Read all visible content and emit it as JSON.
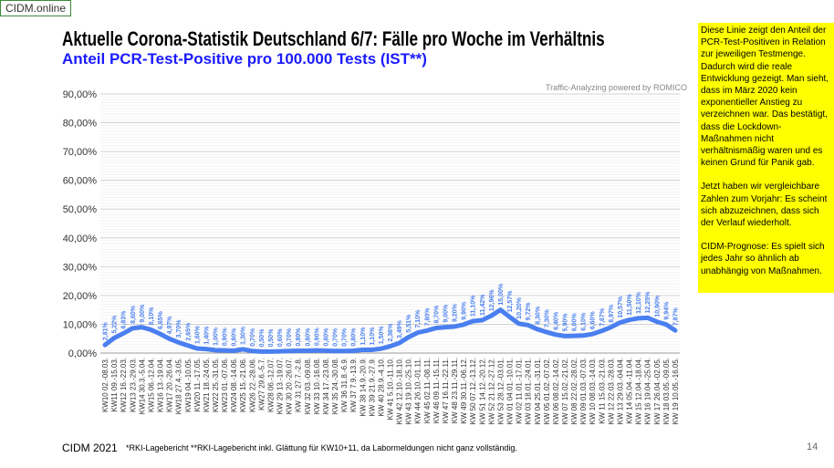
{
  "brand": "CIDM.online",
  "title": "Aktuelle Corona-Statistik Deutschland 6/7: Fälle pro Woche im Verhältnis",
  "subtitle": "Anteil PCR-Test-Positive pro 100.000 Tests (IST**)",
  "credit": "Traffic-Analyzing powered by ROMICO",
  "note": [
    "Diese Linie zeigt den Anteil der PCR-Test-Positiven in Relation zur jeweiligen Testmenge. Dadurch wird die reale Entwicklung gezeigt. Man sieht, dass im März 2020 kein exponentieller Anstieg zu verzeichnen war. Das bestätigt, dass die Lockdown-Maßnahmen nicht verhältnismäßig waren und es keinen Grund für Panik gab.",
    "Jetzt haben wir vergleichbare Zahlen zum Vorjahr: Es scheint sich abzuzeichnen, dass sich der Verlauf wiederholt.",
    "CIDM-Prognose: Es spielt sich jedes Jahr so ähnlich ab unabhängig von Maßnahmen."
  ],
  "footer": {
    "left": "CIDM 2021",
    "footnote": "*RKI-Lagebericht   **RKI-Lagebericht inkl. Glättung für KW10+11, da Labormeldungen nicht ganz vollständig.",
    "page": "14"
  },
  "chart_data": {
    "type": "line",
    "title": "",
    "xlabel": "",
    "ylabel": "",
    "ylim": [
      0,
      90
    ],
    "yticks": [
      "0,00%",
      "10,00%",
      "20,00%",
      "30,00%",
      "40,00%",
      "50,00%",
      "60,00%",
      "70,00%",
      "80,00%",
      "90,00%"
    ],
    "grid": true,
    "color": "#4a7ff0",
    "categories": [
      "KW10 02.-08.03.",
      "KW11 09.-15.03.",
      "KW12 16.-22.03.",
      "KW13 23.-29.03.",
      "KW14 30.3.-5.04.",
      "KW15 06.-12.04.",
      "KW16 13.-19.04.",
      "KW17 20.-26.04.",
      "KW18 27.4.-3.05.",
      "KW19 04.-10.05.",
      "KW20 11.-17.05.",
      "KW21 18.-24.05.",
      "KW22 25.-31.05.",
      "KW23 01.-07.06.",
      "KW24 08.-14.06.",
      "KW25 15.-21.06.",
      "KW26 22.-28.06.",
      "KW27 29.6.-5.7.",
      "KW28 06.-12.07.",
      "KW 29 13.-19.07.",
      "KW 30 20.-26.07.",
      "KW 31 27.7.-2.8.",
      "KW 32 03.-09.08.",
      "KW 33 10.-16.08.",
      "KW 34 17.-23.08.",
      "KW 35 24.-30.08.",
      "KW 36 31.8.-6.9.",
      "KW 37 7.9.-13.9.",
      "KW 38 14.9.-20.9.",
      "KW 39 21.9.-27.9.",
      "KW 40 28.9.-4.10.",
      "KW 41 5.10.-11.10.",
      "KW 42 12.10.-18.10.",
      "KW 43 19.10.-25.10.",
      "KW 44 26.10.-01.11.",
      "KW 45 02.11.-08.11.",
      "KW 46 09.11.-15.11.",
      "KW 47 16.11.-22.11.",
      "KW 48 23.11.-29.11.",
      "KW 49 30.11.-06.12.",
      "KW 50 07.12.-13.12.",
      "KW 51 14.12.-20.12.",
      "KW 52 21.12.-27.12.",
      "KW 53 28.12.-03.01.",
      "KW 01 04.01.-10.01.",
      "KW 02 11.01.-17.01.",
      "KW 03 18.01.-24.01.",
      "KW 04 25.01.-31.01.",
      "KW 05 01.02.-07.02.",
      "KW 06 08.02.-14.02.",
      "KW 07 15.02.-21.02.",
      "KW 08 22.02.-28.02.",
      "KW 09 01.03.-07.03.",
      "KW 10 08.03.-14.03.",
      "KW 11 15.03.-21.03.",
      "KW 12 22.03.-28.03.",
      "KW 13 29.03.-04.04.",
      "KW 14 05.04.-11.04.",
      "KW 15 12.04.-18.04.",
      "KW 16 19.04.-25.04.",
      "KW 17 26.04.-02.05.",
      "KW 18 03.05.-09.05.",
      "KW 19 10.05.-16.05."
    ],
    "values": [
      2.81,
      5.22,
      6.83,
      8.6,
      9.0,
      8.1,
      6.65,
      4.97,
      3.7,
      2.65,
      1.6,
      1.4,
      1.0,
      0.9,
      0.8,
      1.3,
      0.7,
      0.5,
      0.5,
      0.6,
      0.7,
      0.8,
      0.8,
      0.9,
      0.8,
      0.7,
      0.7,
      0.8,
      1.1,
      1.1,
      1.5,
      2.36,
      3.49,
      5.51,
      7.1,
      7.8,
      8.7,
      9.0,
      9.2,
      9.9,
      11.1,
      11.42,
      12.96,
      15.0,
      12.57,
      10.2,
      9.72,
      8.3,
      7.3,
      6.4,
      5.9,
      6.0,
      6.1,
      6.6,
      7.67,
      8.97,
      10.57,
      11.5,
      12.1,
      12.25,
      10.9,
      9.94,
      7.87
    ]
  }
}
